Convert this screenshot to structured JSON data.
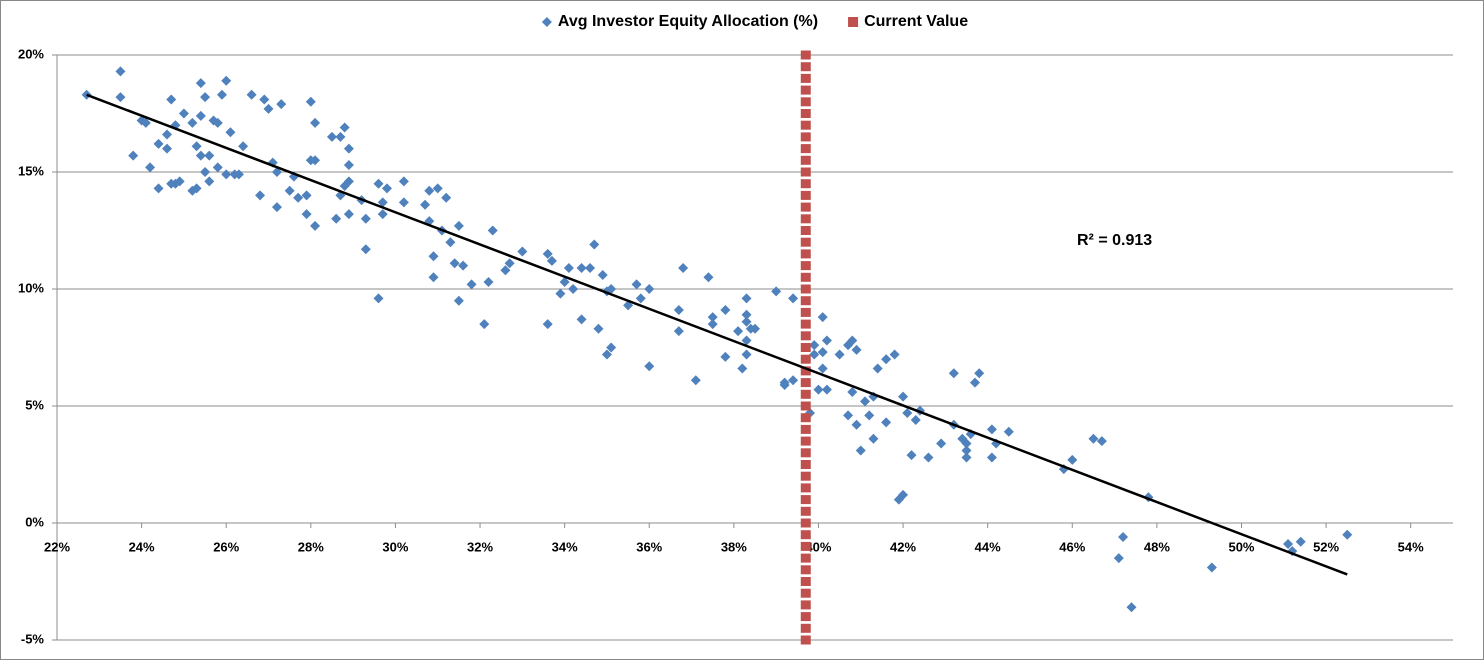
{
  "chart_data": {
    "type": "scatter",
    "series": [
      {
        "name": "Avg Investor Equity Allocation (%)",
        "color": "#4f81bd",
        "marker": "diamond",
        "x": [
          22.7,
          23.5,
          23.5,
          23.8,
          24.0,
          24.1,
          24.2,
          24.4,
          24.4,
          24.6,
          24.6,
          24.7,
          24.7,
          24.8,
          24.8,
          24.9,
          25.0,
          25.2,
          25.2,
          25.3,
          25.3,
          25.4,
          25.4,
          25.4,
          25.5,
          25.5,
          25.6,
          25.6,
          25.7,
          25.8,
          25.8,
          25.9,
          26.0,
          26.0,
          26.1,
          26.2,
          26.3,
          26.4,
          26.6,
          26.8,
          26.9,
          27.0,
          27.1,
          27.2,
          27.2,
          27.3,
          27.5,
          27.6,
          27.7,
          27.9,
          27.9,
          28.0,
          28.0,
          28.1,
          28.1,
          28.1,
          28.5,
          28.6,
          28.7,
          28.7,
          28.8,
          28.8,
          28.9,
          28.9,
          28.9,
          28.9,
          29.2,
          29.3,
          29.3,
          29.6,
          29.6,
          29.7,
          29.7,
          29.8,
          30.2,
          30.2,
          30.7,
          30.8,
          30.8,
          30.9,
          30.9,
          31.0,
          31.1,
          31.2,
          31.3,
          31.4,
          31.5,
          31.5,
          31.6,
          31.8,
          32.1,
          32.2,
          32.3,
          32.6,
          32.7,
          33.0,
          33.6,
          33.6,
          33.7,
          33.9,
          34.0,
          34.1,
          34.2,
          34.4,
          34.4,
          34.6,
          34.7,
          34.8,
          34.9,
          35.0,
          35.0,
          35.1,
          35.1,
          35.5,
          35.7,
          35.8,
          36.0,
          36.0,
          36.7,
          36.7,
          36.8,
          37.1,
          37.4,
          37.5,
          37.5,
          37.8,
          37.8,
          38.1,
          38.2,
          38.3,
          38.3,
          38.3,
          38.3,
          38.3,
          38.4,
          38.5,
          39.0,
          39.2,
          39.2,
          39.4,
          39.4,
          39.8,
          39.9,
          39.9,
          40.0,
          40.1,
          40.1,
          40.1,
          40.2,
          40.2,
          40.5,
          40.7,
          40.7,
          40.8,
          40.8,
          40.9,
          40.9,
          41.0,
          41.1,
          41.2,
          41.3,
          41.3,
          41.4,
          41.6,
          41.6,
          41.8,
          41.9,
          42.0,
          42.0,
          42.1,
          42.2,
          42.3,
          42.4,
          42.6,
          42.9,
          43.2,
          43.2,
          43.4,
          43.5,
          43.5,
          43.5,
          43.6,
          43.7,
          43.8,
          44.1,
          44.1,
          44.2,
          44.5,
          45.8,
          46.0,
          46.5,
          46.7,
          47.1,
          47.2,
          47.4,
          47.8,
          49.3,
          51.1,
          51.2,
          51.4,
          52.5
        ],
        "values": [
          18.3,
          19.3,
          18.2,
          15.7,
          17.2,
          17.1,
          15.2,
          16.2,
          14.3,
          16.6,
          16.0,
          14.5,
          18.1,
          17.0,
          14.5,
          14.6,
          17.5,
          14.2,
          17.1,
          14.3,
          16.1,
          17.4,
          15.7,
          18.8,
          15.0,
          18.2,
          15.7,
          14.6,
          17.2,
          15.2,
          17.1,
          18.3,
          18.9,
          14.9,
          16.7,
          14.9,
          14.9,
          16.1,
          18.3,
          14.0,
          18.1,
          17.7,
          15.4,
          13.5,
          15.0,
          17.9,
          14.2,
          14.8,
          13.9,
          14.0,
          13.2,
          18.0,
          15.5,
          12.7,
          17.1,
          15.5,
          16.5,
          13.0,
          14.0,
          16.5,
          16.9,
          14.4,
          16.0,
          14.6,
          13.2,
          15.3,
          13.8,
          13.0,
          11.7,
          9.6,
          14.5,
          13.2,
          13.7,
          14.3,
          13.7,
          14.6,
          13.6,
          14.2,
          12.9,
          11.4,
          10.5,
          14.3,
          12.5,
          13.9,
          12.0,
          11.1,
          9.5,
          12.7,
          11.0,
          10.2,
          8.5,
          10.3,
          12.5,
          10.8,
          11.1,
          11.6,
          11.5,
          8.5,
          11.2,
          9.8,
          10.3,
          10.9,
          10.0,
          8.7,
          10.9,
          10.9,
          11.9,
          8.3,
          10.6,
          9.9,
          7.2,
          7.5,
          10.0,
          9.3,
          10.2,
          9.6,
          6.7,
          10.0,
          9.1,
          8.2,
          10.9,
          6.1,
          10.5,
          8.5,
          8.8,
          7.1,
          9.1,
          8.2,
          6.6,
          7.2,
          7.8,
          9.6,
          8.6,
          8.9,
          8.3,
          8.3,
          9.9,
          5.9,
          6.0,
          6.1,
          9.6,
          4.7,
          7.6,
          7.2,
          5.7,
          7.3,
          8.8,
          6.6,
          7.8,
          5.7,
          7.2,
          7.6,
          4.6,
          7.8,
          5.6,
          4.2,
          7.4,
          3.1,
          5.2,
          4.6,
          5.4,
          3.6,
          6.6,
          4.3,
          7.0,
          7.2,
          1.0,
          1.2,
          5.4,
          4.7,
          2.9,
          4.4,
          4.8,
          2.8,
          3.4,
          4.2,
          6.4,
          3.6,
          2.8,
          3.1,
          3.4,
          3.8,
          6.0,
          6.4,
          4.0,
          2.8,
          3.4,
          3.9,
          2.3,
          2.7,
          3.6,
          3.5,
          -1.5,
          -0.6,
          -3.6,
          1.1,
          -1.9,
          -0.9,
          -1.2,
          -0.8,
          -0.5
        ]
      },
      {
        "name": "Current Value",
        "color": "#c0504d",
        "marker": "square",
        "x": [
          39.7,
          39.7,
          39.7,
          39.7,
          39.7,
          39.7,
          39.7,
          39.7,
          39.7,
          39.7,
          39.7,
          39.7,
          39.7,
          39.7,
          39.7,
          39.7,
          39.7,
          39.7,
          39.7,
          39.7,
          39.7,
          39.7,
          39.7,
          39.7,
          39.7,
          39.7,
          39.7,
          39.7,
          39.7,
          39.7,
          39.7,
          39.7,
          39.7,
          39.7,
          39.7,
          39.7,
          39.7,
          39.7,
          39.7,
          39.7,
          39.7,
          39.7,
          39.7,
          39.7,
          39.7,
          39.7,
          39.7,
          39.7,
          39.7,
          39.7,
          39.7
        ],
        "values": [
          -5,
          -4.5,
          -4,
          -3.5,
          -3,
          -2.5,
          -2,
          -1.5,
          -1,
          -0.5,
          0,
          0.5,
          1,
          1.5,
          2,
          2.5,
          3,
          3.5,
          4,
          4.5,
          5,
          5.5,
          6,
          6.5,
          7,
          7.5,
          8,
          8.5,
          9,
          9.5,
          10,
          10.5,
          11,
          11.5,
          12,
          12.5,
          13,
          13.5,
          14,
          14.5,
          15,
          15.5,
          16,
          16.5,
          17,
          17.5,
          18,
          18.5,
          19,
          19.5,
          20
        ]
      }
    ],
    "trendline": {
      "color": "#000000",
      "x": [
        22.7,
        52.5
      ],
      "y": [
        18.3,
        -2.2
      ]
    },
    "annotation": "R² = 0.913",
    "xlim": [
      22,
      55
    ],
    "ylim": [
      -5,
      20
    ],
    "xticks": [
      {
        "value": 22,
        "label": "22%"
      },
      {
        "value": 24,
        "label": "24%"
      },
      {
        "value": 26,
        "label": "26%"
      },
      {
        "value": 28,
        "label": "28%"
      },
      {
        "value": 30,
        "label": "30%"
      },
      {
        "value": 32,
        "label": "32%"
      },
      {
        "value": 34,
        "label": "34%"
      },
      {
        "value": 36,
        "label": "36%"
      },
      {
        "value": 38,
        "label": "38%"
      },
      {
        "value": 40,
        "label": "40%"
      },
      {
        "value": 42,
        "label": "42%"
      },
      {
        "value": 44,
        "label": "44%"
      },
      {
        "value": 46,
        "label": "46%"
      },
      {
        "value": 48,
        "label": "48%"
      },
      {
        "value": 50,
        "label": "50%"
      },
      {
        "value": 52,
        "label": "52%"
      },
      {
        "value": 54,
        "label": "54%"
      }
    ],
    "yticks": [
      {
        "value": -5,
        "label": "-5%"
      },
      {
        "value": 0,
        "label": "0%"
      },
      {
        "value": 5,
        "label": "5%"
      },
      {
        "value": 10,
        "label": "10%"
      },
      {
        "value": 15,
        "label": "15%"
      },
      {
        "value": 20,
        "label": "20%"
      }
    ],
    "grid": true,
    "legend": "top"
  }
}
